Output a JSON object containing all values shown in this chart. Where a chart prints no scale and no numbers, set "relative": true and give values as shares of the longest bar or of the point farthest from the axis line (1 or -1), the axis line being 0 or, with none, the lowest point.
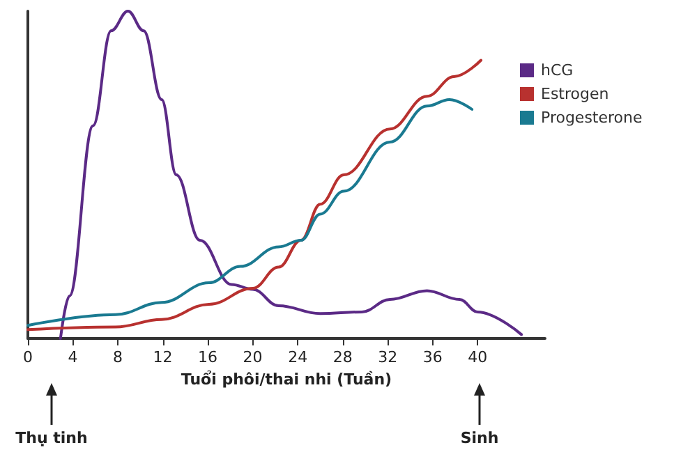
{
  "chart_data": {
    "type": "line",
    "relative": true,
    "xlabel": "Tuổi phôi/thai nhi (Tuần)",
    "xlim": [
      0,
      46
    ],
    "xticks": [
      0,
      4,
      8,
      12,
      16,
      20,
      24,
      28,
      32,
      36,
      40
    ],
    "legend": "top right",
    "grid": false,
    "marker": "none",
    "line_style": "solid",
    "series": [
      {
        "name": "hCG",
        "color": "#5b2a86",
        "x": [
          2.9,
          3.7,
          5.8,
          7.4,
          8.9,
          10.3,
          11.9,
          13.2,
          15.3,
          18.1,
          20,
          22.3,
          26,
          29.7,
          32.2,
          35.5,
          38.4,
          40,
          43.9
        ],
        "values": [
          0,
          0.13,
          0.65,
          0.94,
          1,
          0.94,
          0.73,
          0.5,
          0.3,
          0.165,
          0.15,
          0.1,
          0.076,
          0.081,
          0.119,
          0.146,
          0.119,
          0.081,
          0.012
        ]
      },
      {
        "name": "Estrogen",
        "color": "#b8312f",
        "x": [
          0,
          7.8,
          11.9,
          16.1,
          20,
          22.3,
          24.3,
          26,
          28.1,
          32.2,
          35.5,
          37.9,
          40.3
        ],
        "values": [
          0.027,
          0.035,
          0.058,
          0.104,
          0.153,
          0.218,
          0.3,
          0.41,
          0.5,
          0.64,
          0.74,
          0.8,
          0.85
        ]
      },
      {
        "name": "Progesterone",
        "color": "#1a7a91",
        "x": [
          0,
          7.8,
          11.9,
          16.1,
          18.9,
          22.3,
          24.3,
          26,
          28.1,
          32.2,
          35.5,
          37.5,
          39.5
        ],
        "values": [
          0.04,
          0.073,
          0.11,
          0.17,
          0.22,
          0.28,
          0.3,
          0.38,
          0.45,
          0.6,
          0.71,
          0.73,
          0.7
        ]
      }
    ],
    "annotations": [
      "Thụ tinh",
      "Sinh"
    ]
  }
}
